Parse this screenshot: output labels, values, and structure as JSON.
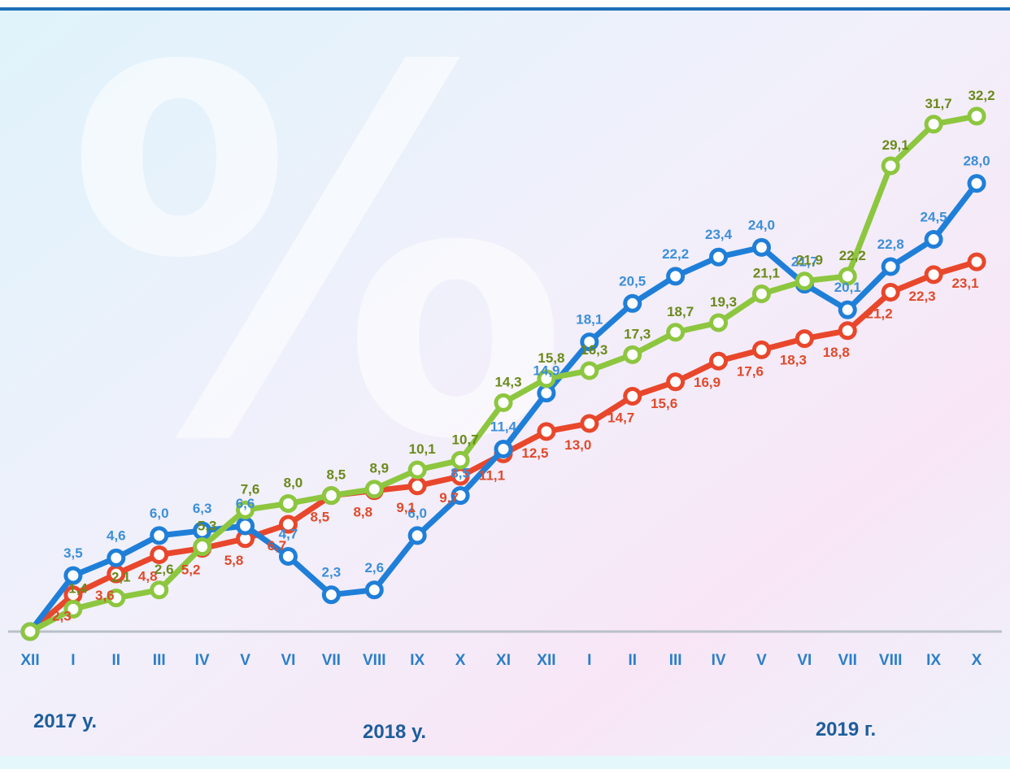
{
  "chart_data": {
    "type": "line",
    "categories": [
      "XII",
      "I",
      "II",
      "III",
      "IV",
      "V",
      "VI",
      "VII",
      "VIII",
      "IX",
      "X",
      "XI",
      "XII",
      "I",
      "II",
      "III",
      "IV",
      "V",
      "VI",
      "VII",
      "VIII",
      "IX",
      "X"
    ],
    "ylim": [
      0,
      39
    ],
    "series": [
      {
        "color": "#1f7fd8",
        "label_color": "#3b8fd8",
        "values": [
          0,
          3.5,
          4.6,
          6.0,
          6.3,
          6.6,
          4.7,
          2.3,
          2.6,
          6.0,
          8.5,
          11.4,
          14.9,
          18.1,
          20.5,
          22.2,
          23.4,
          24.0,
          21.7,
          20.1,
          22.8,
          24.5,
          28.0
        ],
        "value_labels": [
          null,
          "3,5",
          "4,6",
          "6,0",
          "6,3",
          "6,6",
          "4,7",
          "2,3",
          "2,6",
          "6,0",
          "8,5",
          "11,4",
          "14,9",
          "18,1",
          "20,5",
          "22,2",
          "23,4",
          "24,0",
          "21,7",
          "20,1",
          "22,8",
          "24,5",
          "28,0"
        ]
      },
      {
        "color": "#e8472c",
        "label_color": "#e04a2a",
        "values": [
          0,
          2.3,
          3.6,
          4.8,
          5.2,
          5.8,
          6.7,
          8.5,
          8.8,
          9.1,
          9.7,
          11.1,
          12.5,
          13.0,
          14.7,
          15.6,
          16.9,
          17.6,
          18.3,
          18.8,
          21.2,
          22.3,
          23.1
        ],
        "value_labels": [
          null,
          "2,3",
          "3,6",
          "4,8",
          "5,2",
          "5,8",
          "6,7",
          "8,5",
          "8,8",
          "9,1",
          "9,7",
          "11,1",
          "12,5",
          "13,0",
          "14,7",
          "15,6",
          "16,9",
          "17,6",
          "18,3",
          "18,8",
          "21,2",
          "22,3",
          "23,1"
        ]
      },
      {
        "color": "#8dc63f",
        "label_color": "#6b8a1a",
        "values": [
          0,
          1.4,
          2.1,
          2.6,
          5.3,
          7.6,
          8.0,
          8.5,
          8.9,
          10.1,
          10.7,
          14.3,
          15.8,
          16.3,
          17.3,
          18.7,
          19.3,
          21.1,
          21.9,
          22.2,
          29.1,
          31.7,
          32.2
        ],
        "value_labels": [
          null,
          "1,4",
          "2,1",
          "2,6",
          "5,3",
          "7,6",
          "8,0",
          "8,5",
          "8,9",
          "10,1",
          "10,7",
          "14,3",
          "15,8",
          "16,3",
          "17,3",
          "18,7",
          "19,3",
          "21,1",
          "21,9",
          "22,2",
          "29,1",
          "31,7",
          "32,2"
        ]
      }
    ],
    "year_labels": [
      "2017 у.",
      "2018 у.",
      "2019 г."
    ]
  }
}
